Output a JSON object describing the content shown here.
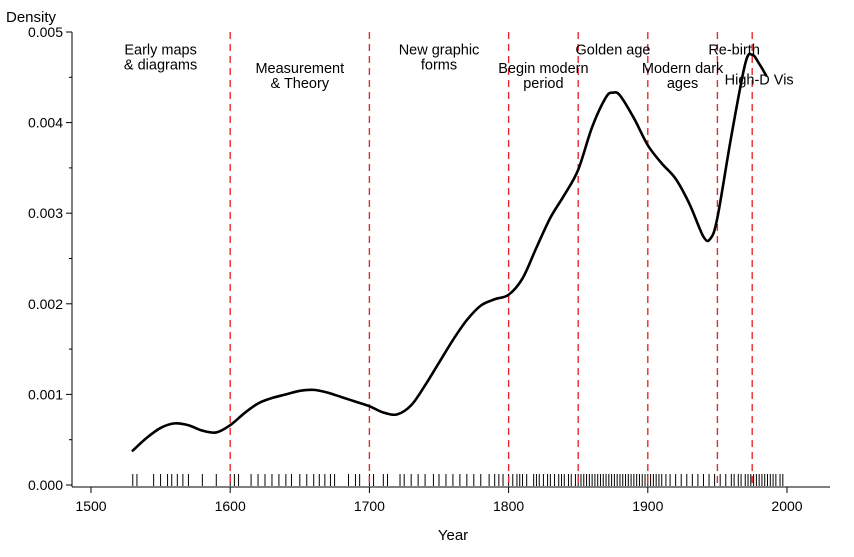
{
  "chart_data": {
    "type": "line",
    "title": "",
    "xlabel": "Year",
    "ylabel": "Density",
    "xlim": [
      1500,
      2000
    ],
    "ylim": [
      0,
      0.005
    ],
    "grid": false,
    "x_ticks": [
      {
        "value": 1500,
        "label": "1500"
      },
      {
        "value": 1600,
        "label": "1600"
      },
      {
        "value": 1700,
        "label": "1700"
      },
      {
        "value": 1800,
        "label": "1800"
      },
      {
        "value": 1900,
        "label": "1900"
      },
      {
        "value": 2000,
        "label": "2000"
      }
    ],
    "y_ticks": [
      {
        "value": 0,
        "label": "0.000"
      },
      {
        "value": 0.001,
        "label": "0.001"
      },
      {
        "value": 0.002,
        "label": "0.002"
      },
      {
        "value": 0.003,
        "label": "0.003"
      },
      {
        "value": 0.004,
        "label": "0.004"
      },
      {
        "value": 0.005,
        "label": "0.005"
      }
    ],
    "series": [
      {
        "color": "#000000",
        "x": [
          1530,
          1540,
          1550,
          1560,
          1570,
          1580,
          1590,
          1600,
          1610,
          1620,
          1630,
          1640,
          1650,
          1660,
          1670,
          1680,
          1690,
          1700,
          1710,
          1720,
          1730,
          1740,
          1750,
          1760,
          1770,
          1780,
          1790,
          1800,
          1810,
          1820,
          1830,
          1840,
          1850,
          1860,
          1870,
          1875,
          1880,
          1890,
          1900,
          1910,
          1920,
          1930,
          1940,
          1945,
          1950,
          1960,
          1970,
          1975,
          1980,
          1985
        ],
        "y": [
          0.00038,
          0.00052,
          0.00063,
          0.00068,
          0.00066,
          0.0006,
          0.00058,
          0.00066,
          0.00079,
          0.0009,
          0.00096,
          0.001,
          0.00104,
          0.00105,
          0.00102,
          0.00097,
          0.00092,
          0.00087,
          0.0008,
          0.00078,
          0.00088,
          0.0011,
          0.00135,
          0.0016,
          0.00182,
          0.00198,
          0.00205,
          0.0021,
          0.00228,
          0.00262,
          0.00295,
          0.0032,
          0.00348,
          0.00395,
          0.00428,
          0.00433,
          0.0043,
          0.00405,
          0.00375,
          0.00355,
          0.00338,
          0.0031,
          0.00274,
          0.00272,
          0.00295,
          0.00385,
          0.00465,
          0.00475,
          0.00465,
          0.00452
        ]
      }
    ],
    "reference_lines": {
      "color": "#e8282b",
      "style": "dashed",
      "x": [
        1600,
        1700,
        1800,
        1850,
        1900,
        1950,
        1975
      ]
    },
    "period_labels": [
      {
        "lines": [
          "Early maps",
          "& diagrams"
        ],
        "x": 1550,
        "y": 0.00475
      },
      {
        "lines": [
          "Measurement",
          "& Theory"
        ],
        "x": 1650,
        "y": 0.00455
      },
      {
        "lines": [
          "New graphic",
          "forms"
        ],
        "x": 1750,
        "y": 0.00475
      },
      {
        "lines": [
          "Begin modern",
          "period"
        ],
        "x": 1825,
        "y": 0.00455
      },
      {
        "lines": [
          "Golden age"
        ],
        "x": 1875,
        "y": 0.00475
      },
      {
        "lines": [
          "Modern dark",
          "ages"
        ],
        "x": 1925,
        "y": 0.00455
      },
      {
        "lines": [
          "Re-birth"
        ],
        "x": 1962,
        "y": 0.00475
      },
      {
        "lines": [
          "High-D Vis"
        ],
        "x": 1980,
        "y": 0.00442
      }
    ],
    "rug_x": [
      1530,
      1533,
      1545,
      1550,
      1555,
      1558,
      1562,
      1566,
      1570,
      1580,
      1590,
      1600,
      1603,
      1606,
      1615,
      1620,
      1625,
      1630,
      1635,
      1640,
      1644,
      1650,
      1655,
      1660,
      1664,
      1668,
      1672,
      1675,
      1685,
      1690,
      1693,
      1700,
      1703,
      1710,
      1713,
      1722,
      1725,
      1730,
      1735,
      1740,
      1746,
      1750,
      1755,
      1760,
      1765,
      1770,
      1775,
      1780,
      1786,
      1790,
      1793,
      1796,
      1800,
      1803,
      1806,
      1808,
      1810,
      1813,
      1818,
      1820,
      1822,
      1825,
      1828,
      1830,
      1833,
      1836,
      1838,
      1840,
      1843,
      1845,
      1848,
      1850,
      1852,
      1854,
      1856,
      1858,
      1860,
      1862,
      1864,
      1866,
      1868,
      1870,
      1872,
      1874,
      1876,
      1878,
      1880,
      1882,
      1884,
      1886,
      1888,
      1890,
      1892,
      1894,
      1896,
      1898,
      1900,
      1902,
      1904,
      1906,
      1908,
      1910,
      1913,
      1916,
      1920,
      1924,
      1928,
      1932,
      1936,
      1940,
      1944,
      1948,
      1952,
      1956,
      1960,
      1962,
      1965,
      1967,
      1970,
      1972,
      1974,
      1976,
      1978,
      1980,
      1982,
      1984,
      1986,
      1988,
      1990,
      1992,
      1995,
      1997
    ]
  }
}
